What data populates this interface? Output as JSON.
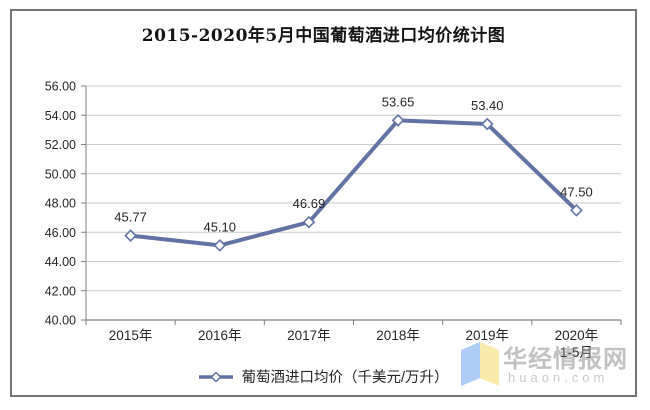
{
  "title": "2015-2020年5月中国葡萄酒进口均价统计图",
  "legend": {
    "label": "葡萄酒进口均价（千美元/万升）"
  },
  "watermark": {
    "name": "华经情报网",
    "url": "huaon.com"
  },
  "colors": {
    "line": "#6173a4",
    "marker_fill": "#ffffff",
    "gridline": "#c9c9c9",
    "axis": "#7f7f7f",
    "text": "#262626",
    "frame_border": "#757575",
    "watermark_blue": "#a9c9f4",
    "watermark_yellow": "#fae9a6"
  },
  "chart_data": {
    "type": "line",
    "title": "2015-2020年5月中国葡萄酒进口均价统计图",
    "categories": [
      "2015年",
      "2016年",
      "2017年",
      "2018年",
      "2019年",
      "2020年\n1-5月"
    ],
    "values": [
      45.77,
      45.1,
      46.69,
      53.65,
      53.4,
      47.5
    ],
    "series_name": "葡萄酒进口均价（千美元/万升）",
    "xlabel": "",
    "ylabel": "",
    "ylim": [
      40,
      56
    ],
    "ytick_step": 2,
    "ytick_labels": [
      "40.00",
      "42.00",
      "44.00",
      "46.00",
      "48.00",
      "50.00",
      "52.00",
      "54.00",
      "56.00"
    ],
    "grid": true,
    "legend_position": "bottom",
    "marker": "open-diamond",
    "data_labels": true
  }
}
